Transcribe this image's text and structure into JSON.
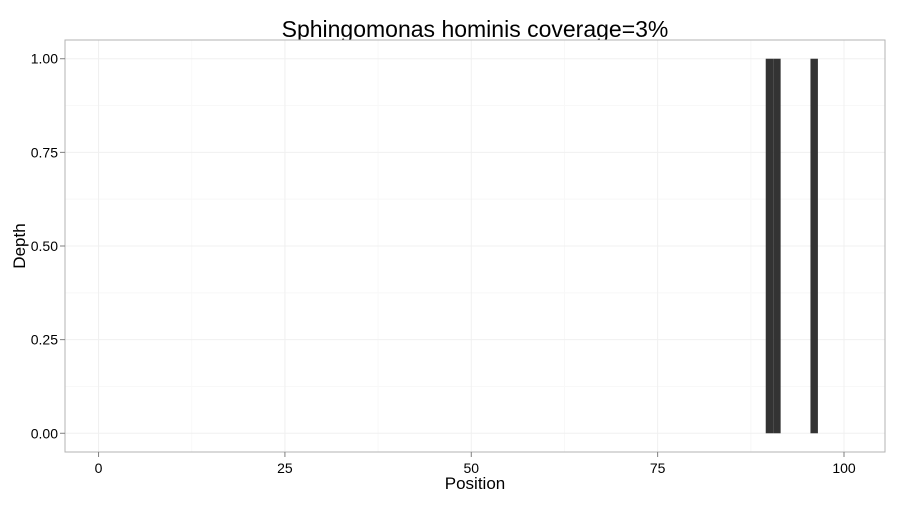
{
  "chart_data": {
    "type": "bar",
    "title": "Sphingomonas hominis coverage=3%",
    "xlabel": "Position",
    "ylabel": "Depth",
    "xlim": [
      -4.5,
      105.5
    ],
    "ylim": [
      -0.05,
      1.05
    ],
    "x_ticks": [
      {
        "value": 0,
        "label": "0"
      },
      {
        "value": 25,
        "label": "25"
      },
      {
        "value": 50,
        "label": "50"
      },
      {
        "value": 75,
        "label": "75"
      },
      {
        "value": 100,
        "label": "100"
      }
    ],
    "y_ticks": [
      {
        "value": 0,
        "label": "0.00"
      },
      {
        "value": 0.25,
        "label": "0.25"
      },
      {
        "value": 0.5,
        "label": "0.50"
      },
      {
        "value": 0.75,
        "label": "0.75"
      },
      {
        "value": 1,
        "label": "1.00"
      }
    ],
    "x_minor": [
      12.5,
      37.5,
      62.5,
      87.5
    ],
    "y_minor": [
      0.125,
      0.375,
      0.625,
      0.875
    ],
    "bar_width": 1,
    "points": [
      {
        "x": 90,
        "y": 1
      },
      {
        "x": 91,
        "y": 1
      },
      {
        "x": 96,
        "y": 1
      }
    ],
    "grid": true,
    "colors": {
      "bar": "#333333",
      "grid_major": "#f0f0f0",
      "grid_minor": "#f8f8f8",
      "panel_border": "#b3b3b3",
      "axis": "#7f7f7f",
      "tick_text": "#000000"
    }
  }
}
